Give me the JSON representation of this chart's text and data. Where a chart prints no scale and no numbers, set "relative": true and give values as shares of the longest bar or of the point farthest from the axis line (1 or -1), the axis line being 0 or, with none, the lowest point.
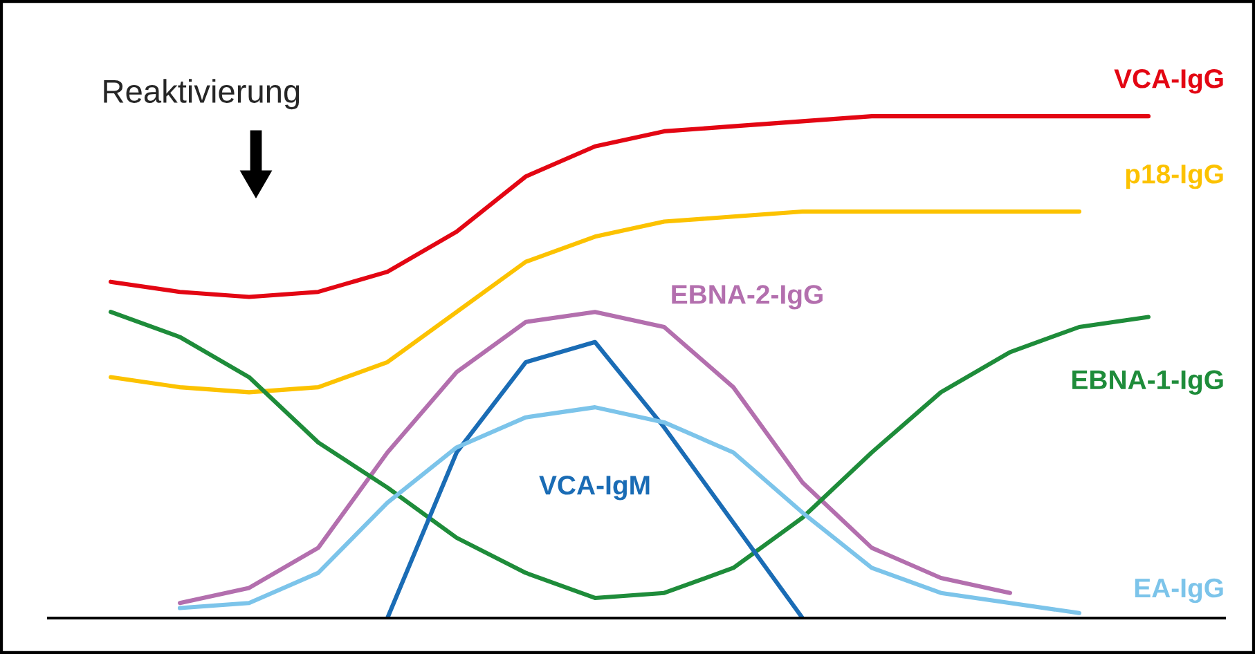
{
  "chart_data": {
    "type": "line",
    "relative": true,
    "legend": false,
    "marker": "none",
    "line_style": "solid",
    "categories": [
      null,
      null,
      null,
      null,
      null,
      null,
      null,
      null,
      null,
      null,
      null,
      null,
      null,
      null,
      null,
      null,
      null
    ],
    "series": [
      {
        "name": "VCA-IgG",
        "color": "#e30613",
        "values": [
          0.67,
          0.65,
          0.64,
          0.65,
          0.69,
          0.77,
          0.88,
          0.94,
          0.97,
          0.98,
          0.99,
          1.0,
          1.0,
          1.0,
          1.0,
          1.0,
          null
        ]
      },
      {
        "name": "p18-IgG",
        "color": "#fcc200",
        "values": [
          0.48,
          0.46,
          0.45,
          0.46,
          0.51,
          0.61,
          0.71,
          0.76,
          0.79,
          0.8,
          0.81,
          0.81,
          0.81,
          0.81,
          0.81,
          null,
          null
        ]
      },
      {
        "name": "EBNA-2-IgG",
        "color": "#b36fae",
        "values": [
          null,
          0.03,
          0.06,
          0.14,
          0.33,
          0.49,
          0.59,
          0.61,
          0.58,
          0.46,
          0.27,
          0.14,
          0.08,
          0.05,
          null,
          null,
          null
        ]
      },
      {
        "name": "EBNA-1-IgG",
        "color": "#1e8c3a",
        "values": [
          0.61,
          0.56,
          0.48,
          0.35,
          0.26,
          0.16,
          0.09,
          0.04,
          0.05,
          0.1,
          0.2,
          0.33,
          0.45,
          0.53,
          0.58,
          0.6,
          null
        ]
      },
      {
        "name": "VCA-IgM",
        "color": "#1a6cb5",
        "values": [
          null,
          null,
          null,
          null,
          0.0,
          0.33,
          0.51,
          0.55,
          0.38,
          0.19,
          0.0,
          null,
          null,
          null,
          null,
          null,
          null
        ]
      },
      {
        "name": "EA-IgG",
        "color": "#7cc4ea",
        "values": [
          null,
          0.02,
          0.03,
          0.09,
          0.23,
          0.34,
          0.4,
          0.42,
          0.39,
          0.33,
          0.21,
          0.1,
          0.05,
          0.03,
          0.01,
          null,
          null
        ]
      }
    ],
    "annotations": [
      "Reaktivierung"
    ]
  }
}
